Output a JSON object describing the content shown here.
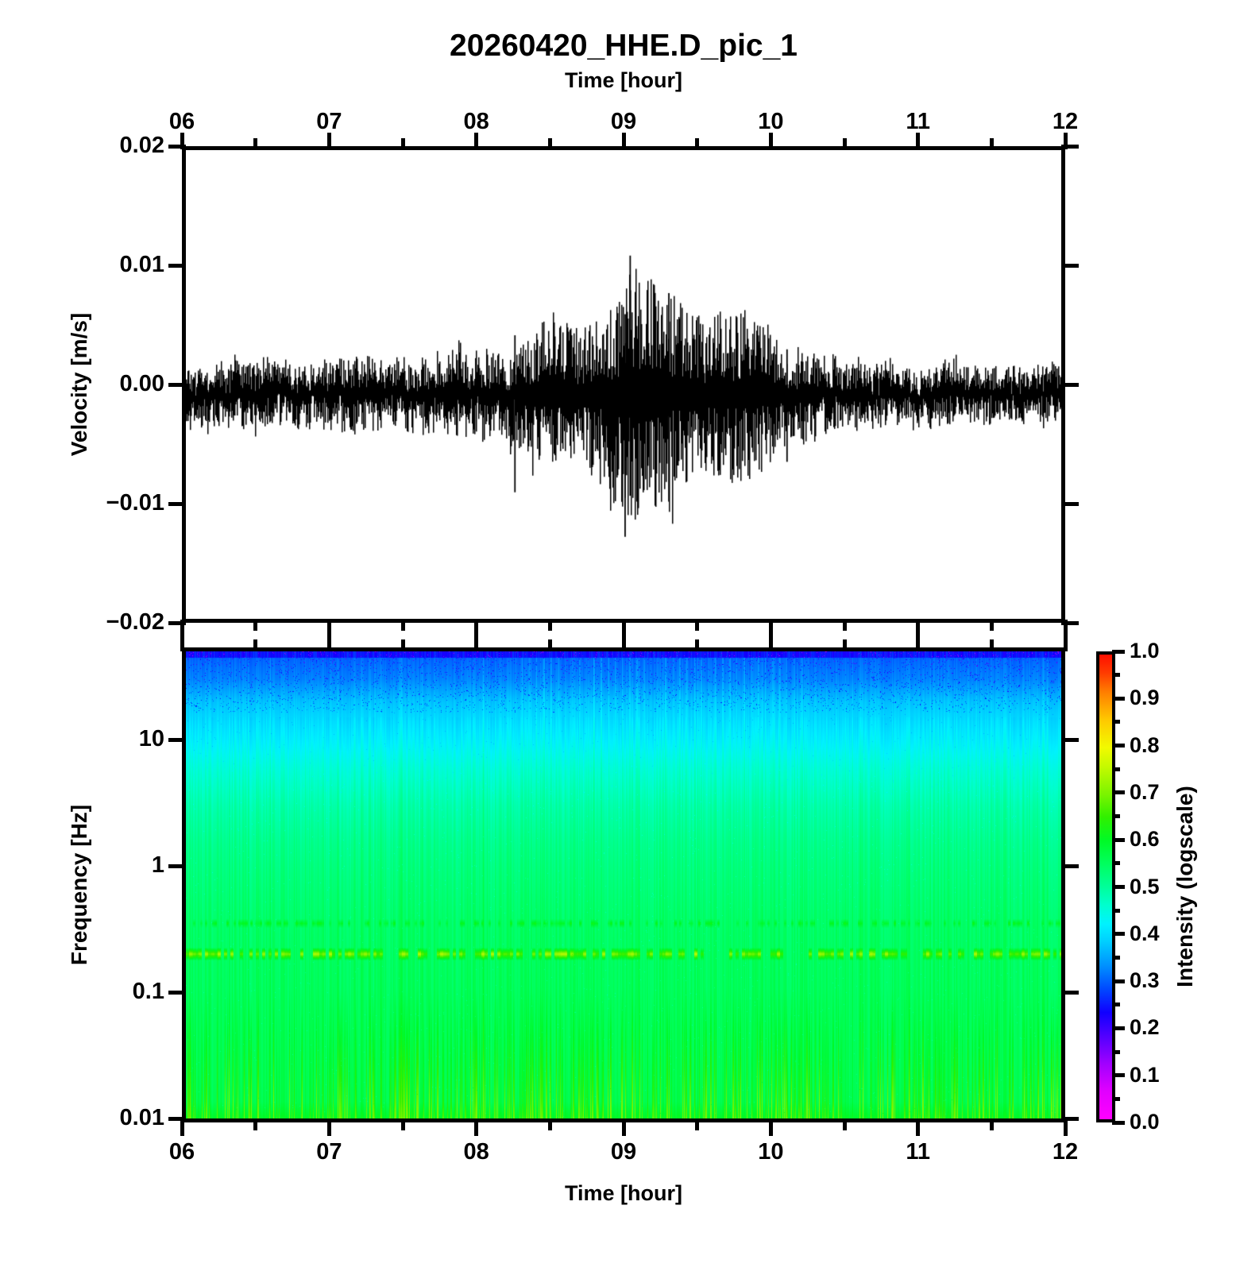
{
  "title": "20260420_HHE.D_pic_1",
  "top_axis": {
    "label": "Time [hour]",
    "tick_labels": [
      "06",
      "07",
      "08",
      "09",
      "10",
      "11",
      "12"
    ],
    "tick_hours": [
      6,
      7,
      8,
      9,
      10,
      11,
      12
    ]
  },
  "bottom_axis": {
    "label": "Time [hour]",
    "tick_labels": [
      "06",
      "07",
      "08",
      "09",
      "10",
      "11",
      "12"
    ],
    "tick_hours": [
      6,
      7,
      8,
      9,
      10,
      11,
      12
    ]
  },
  "waveform": {
    "ylabel": "Velocity [m/s]",
    "ytick_labels": [
      "0.02",
      "0.01",
      "0.00",
      "−0.01",
      "−0.02"
    ],
    "ytick_values": [
      0.02,
      0.01,
      0,
      -0.01,
      -0.02
    ]
  },
  "spectrogram": {
    "ylabel": "Frequency [Hz]",
    "ytick_labels": [
      "10",
      "1",
      "0.1",
      "0.01"
    ],
    "ytick_values": [
      10,
      1,
      0.1,
      0.01
    ]
  },
  "colorbar": {
    "label": "Intensity (logscale)",
    "tick_labels": [
      "1.0",
      "0.9",
      "0.8",
      "0.7",
      "0.6",
      "0.5",
      "0.4",
      "0.3",
      "0.2",
      "0.1",
      "0.0"
    ],
    "tick_values": [
      1,
      0.9,
      0.8,
      0.7,
      0.6,
      0.5,
      0.4,
      0.3,
      0.2,
      0.1,
      0
    ]
  },
  "colors": {
    "background": "#ffffff",
    "axis": "#000000",
    "trace": "#000000"
  },
  "chart_data": [
    {
      "type": "line",
      "name": "seismic-velocity-trace",
      "title": "20260420_HHE.D_pic_1",
      "xlabel": "Time [hour]",
      "ylabel": "Velocity [m/s]",
      "x_range_hours": [
        6,
        12
      ],
      "ylim": [
        -0.02,
        0.02
      ],
      "x_tick_hours": [
        6,
        7,
        8,
        9,
        10,
        11,
        12
      ],
      "x_minor_step_hours": 0.5,
      "baseline_offset": -0.0008,
      "noise_seed": 42,
      "envelope_t_neg_pos": [
        [
          6.0,
          0.0026,
          0.0022
        ],
        [
          6.4,
          0.003,
          0.0026
        ],
        [
          6.8,
          0.0026,
          0.0024
        ],
        [
          7.2,
          0.003,
          0.003
        ],
        [
          7.6,
          0.0026,
          0.0024
        ],
        [
          7.9,
          0.0032,
          0.0036
        ],
        [
          8.15,
          0.0034,
          0.003
        ],
        [
          8.3,
          0.0044,
          0.004
        ],
        [
          8.5,
          0.006,
          0.0068
        ],
        [
          8.7,
          0.0055,
          0.005
        ],
        [
          8.85,
          0.007,
          0.006
        ],
        [
          9.0,
          0.0115,
          0.0085
        ],
        [
          9.07,
          0.0105,
          0.01
        ],
        [
          9.15,
          0.009,
          0.0085
        ],
        [
          9.25,
          0.01,
          0.0092
        ],
        [
          9.35,
          0.008,
          0.0078
        ],
        [
          9.5,
          0.0062,
          0.006
        ],
        [
          9.65,
          0.0068,
          0.0066
        ],
        [
          9.8,
          0.0072,
          0.0066
        ],
        [
          9.95,
          0.006,
          0.0055
        ],
        [
          10.1,
          0.0048,
          0.0042
        ],
        [
          10.25,
          0.0038,
          0.0034
        ],
        [
          10.5,
          0.0028,
          0.0026
        ],
        [
          10.8,
          0.0025,
          0.0023
        ],
        [
          11.2,
          0.0024,
          0.0022
        ],
        [
          11.6,
          0.0023,
          0.0021
        ],
        [
          12.0,
          0.0026,
          0.0023
        ]
      ],
      "spikes_t_min_max": [
        [
          8.255,
          -0.0092,
          0.0042
        ],
        [
          9.01,
          -0.013,
          0.006
        ],
        [
          9.045,
          -0.0095,
          0.011
        ],
        [
          9.31,
          -0.01,
          0.0078
        ],
        [
          10.12,
          -0.0066,
          0.003
        ]
      ]
    },
    {
      "type": "heatmap",
      "name": "spectrogram",
      "xlabel": "Time [hour]",
      "ylabel": "Frequency [Hz]",
      "x_range_hours": [
        6,
        12
      ],
      "freq_range_hz": [
        0.01,
        50
      ],
      "freq_scale": "log",
      "intensity_label": "Intensity (logscale)",
      "intensity_range": [
        0,
        1
      ],
      "colormap_stops": [
        [
          0.0,
          "#ff00ff"
        ],
        [
          0.06,
          "#e100ff"
        ],
        [
          0.12,
          "#a000ff"
        ],
        [
          0.18,
          "#5000ff"
        ],
        [
          0.23,
          "#1000ff"
        ],
        [
          0.28,
          "#0048ff"
        ],
        [
          0.33,
          "#0090ff"
        ],
        [
          0.38,
          "#00ccff"
        ],
        [
          0.42,
          "#00f2ff"
        ],
        [
          0.46,
          "#00ffcf"
        ],
        [
          0.5,
          "#00ff9a"
        ],
        [
          0.55,
          "#00ff5e"
        ],
        [
          0.6,
          "#00fa26"
        ],
        [
          0.65,
          "#30f000"
        ],
        [
          0.7,
          "#7cf400"
        ],
        [
          0.76,
          "#c6fa00"
        ],
        [
          0.8,
          "#f2fa00"
        ],
        [
          0.86,
          "#ffc800"
        ],
        [
          0.92,
          "#ff7d00"
        ],
        [
          0.96,
          "#ff3c00"
        ],
        [
          1.0,
          "#ff0f00"
        ]
      ],
      "background_intensity_by_freq_hz": [
        [
          50,
          0.295
        ],
        [
          30,
          0.325
        ],
        [
          20,
          0.375
        ],
        [
          14,
          0.4
        ],
        [
          10,
          0.42
        ],
        [
          6,
          0.455
        ],
        [
          3,
          0.49
        ],
        [
          1.5,
          0.515
        ],
        [
          1,
          0.525
        ],
        [
          0.6,
          0.535
        ],
        [
          0.35,
          0.545
        ],
        [
          0.2,
          0.55
        ],
        [
          0.1,
          0.555
        ],
        [
          0.05,
          0.56
        ],
        [
          0.02,
          0.565
        ],
        [
          0.01,
          0.57
        ]
      ],
      "microseism_band": {
        "freq_hz": 0.2,
        "peak_intensity": 0.76
      },
      "secondary_band": {
        "freq_hz": 0.35,
        "peak_intensity": 0.64
      },
      "low_freq_streak_intensity": 0.74,
      "top_edge_intensity": 0.24,
      "event_window_hours": [
        8.25,
        10.35
      ],
      "noise_seed": 1337
    }
  ]
}
